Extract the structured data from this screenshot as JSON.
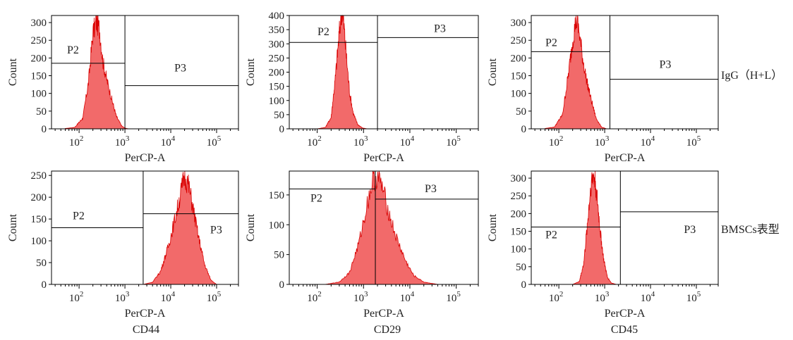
{
  "chart_data": [
    {
      "id": "igg-col1",
      "type": "area",
      "xlabel": "PerCP-A",
      "ylabel": "Count",
      "xscale": "log",
      "xticks": [
        {
          "v": 100,
          "t": "10",
          "e": "2"
        },
        {
          "v": 1000,
          "t": "10",
          "e": "3"
        },
        {
          "v": 10000,
          "t": "10",
          "e": "4"
        },
        {
          "v": 100000,
          "t": "10",
          "e": "5"
        }
      ],
      "xlim": [
        25,
        300000
      ],
      "ylim": [
        0,
        320
      ],
      "yticks": [
        0,
        50,
        100,
        150,
        200,
        250,
        300
      ],
      "histogram": {
        "x": [
          50,
          80,
          120,
          160,
          200,
          240,
          280,
          330,
          400,
          500,
          650,
          850,
          1000,
          1200
        ],
        "y": [
          1,
          4,
          30,
          130,
          270,
          305,
          280,
          190,
          140,
          90,
          35,
          8,
          2,
          0
        ]
      },
      "gates": [
        {
          "name": "P2",
          "x_range": [
            25,
            1000
          ],
          "y": 185
        },
        {
          "name": "P3",
          "x_range": [
            1000,
            300000
          ],
          "y": 122
        }
      ]
    },
    {
      "id": "igg-col2",
      "type": "area",
      "xlabel": "PerCP-A",
      "ylabel": "Count",
      "xscale": "log",
      "xticks": [
        {
          "v": 100,
          "t": "10",
          "e": "2"
        },
        {
          "v": 1000,
          "t": "10",
          "e": "3"
        },
        {
          "v": 10000,
          "t": "10",
          "e": "4"
        },
        {
          "v": 100000,
          "t": "10",
          "e": "5"
        }
      ],
      "xlim": [
        25,
        300000
      ],
      "ylim": [
        0,
        400
      ],
      "yticks": [
        0,
        50,
        100,
        150,
        200,
        250,
        300,
        350,
        400
      ],
      "histogram": {
        "x": [
          100,
          150,
          200,
          250,
          300,
          340,
          380,
          430,
          500,
          600,
          750,
          950,
          1200
        ],
        "y": [
          0,
          5,
          40,
          190,
          340,
          420,
          360,
          250,
          130,
          55,
          15,
          3,
          0
        ]
      },
      "gates": [
        {
          "name": "P2",
          "x_range": [
            25,
            2000
          ],
          "y": 305
        },
        {
          "name": "P3",
          "x_range": [
            2000,
            300000
          ],
          "y": 322
        }
      ]
    },
    {
      "id": "igg-col3",
      "type": "area",
      "xlabel": "PerCP-A",
      "ylabel": "Count",
      "xscale": "log",
      "xticks": [
        {
          "v": 100,
          "t": "10",
          "e": "2"
        },
        {
          "v": 1000,
          "t": "10",
          "e": "3"
        },
        {
          "v": 10000,
          "t": "10",
          "e": "4"
        },
        {
          "v": 100000,
          "t": "10",
          "e": "5"
        }
      ],
      "xlim": [
        25,
        300000
      ],
      "ylim": [
        0,
        320
      ],
      "yticks": [
        0,
        50,
        100,
        150,
        200,
        250,
        300
      ],
      "histogram": {
        "x": [
          50,
          80,
          120,
          160,
          200,
          240,
          280,
          330,
          400,
          500,
          650,
          850,
          1100
        ],
        "y": [
          1,
          5,
          40,
          150,
          250,
          310,
          270,
          200,
          140,
          85,
          30,
          5,
          0
        ]
      },
      "gates": [
        {
          "name": "P2",
          "x_range": [
            25,
            1300
          ],
          "y": 218
        },
        {
          "name": "P3",
          "x_range": [
            1300,
            300000
          ],
          "y": 140
        }
      ]
    },
    {
      "id": "cd44",
      "type": "area",
      "xlabel": "PerCP-A",
      "ylabel": "Count",
      "xscale": "log",
      "xticks": [
        {
          "v": 100,
          "t": "10",
          "e": "2"
        },
        {
          "v": 1000,
          "t": "10",
          "e": "3"
        },
        {
          "v": 10000,
          "t": "10",
          "e": "4"
        },
        {
          "v": 100000,
          "t": "10",
          "e": "5"
        }
      ],
      "xlim": [
        25,
        300000
      ],
      "ylim": [
        0,
        260
      ],
      "yticks": [
        0,
        50,
        100,
        150,
        200,
        250
      ],
      "histogram": {
        "x": [
          2500,
          4000,
          6000,
          9000,
          13000,
          17000,
          20000,
          24000,
          30000,
          40000,
          55000,
          75000,
          100000
        ],
        "y": [
          0,
          5,
          30,
          90,
          160,
          215,
          250,
          230,
          180,
          110,
          45,
          10,
          0
        ]
      },
      "gates": [
        {
          "name": "P2",
          "x_range": [
            25,
            2500
          ],
          "y": 130
        },
        {
          "name": "P3",
          "x_range": [
            2500,
            300000
          ],
          "y": 162
        }
      ]
    },
    {
      "id": "cd29",
      "type": "area",
      "xlabel": "PerCP-A",
      "ylabel": "Count",
      "xscale": "log",
      "xticks": [
        {
          "v": 100,
          "t": "10",
          "e": "2"
        },
        {
          "v": 1000,
          "t": "10",
          "e": "3"
        },
        {
          "v": 10000,
          "t": "10",
          "e": "4"
        },
        {
          "v": 100000,
          "t": "10",
          "e": "5"
        }
      ],
      "xlim": [
        25,
        300000
      ],
      "ylim": [
        0,
        190
      ],
      "yticks": [
        0,
        50,
        100,
        150
      ],
      "histogram": {
        "x": [
          150,
          300,
          500,
          800,
          1200,
          1600,
          2000,
          2600,
          3500,
          5000,
          8000,
          12000,
          20000,
          40000
        ],
        "y": [
          0,
          4,
          20,
          70,
          135,
          175,
          180,
          160,
          120,
          80,
          40,
          15,
          4,
          0
        ]
      },
      "gates": [
        {
          "name": "P2",
          "x_range": [
            25,
            1800
          ],
          "y": 160
        },
        {
          "name": "P3",
          "x_range": [
            1800,
            300000
          ],
          "y": 143
        }
      ]
    },
    {
      "id": "cd45",
      "type": "area",
      "xlabel": "PerCP-A",
      "ylabel": "Count",
      "xscale": "log",
      "xticks": [
        {
          "v": 100,
          "t": "10",
          "e": "2"
        },
        {
          "v": 1000,
          "t": "10",
          "e": "3"
        },
        {
          "v": 10000,
          "t": "10",
          "e": "4"
        },
        {
          "v": 100000,
          "t": "10",
          "e": "5"
        }
      ],
      "xlim": [
        25,
        300000
      ],
      "ylim": [
        0,
        320
      ],
      "yticks": [
        0,
        50,
        100,
        150,
        200,
        250,
        300
      ],
      "histogram": {
        "x": [
          200,
          280,
          350,
          420,
          500,
          560,
          620,
          700,
          800,
          950,
          1150,
          1400,
          1800
        ],
        "y": [
          0,
          8,
          60,
          170,
          280,
          310,
          290,
          230,
          150,
          70,
          20,
          4,
          0
        ]
      },
      "gates": [
        {
          "name": "P2",
          "x_range": [
            25,
            2200
          ],
          "y": 162
        },
        {
          "name": "P3",
          "x_range": [
            2200,
            300000
          ],
          "y": 205
        }
      ]
    }
  ],
  "row_labels": [
    "IgG（H+L）",
    "BMSCs表型"
  ],
  "column_labels": [
    "CD44",
    "CD29",
    "CD45"
  ],
  "colors": {
    "fill": "#f26a6a",
    "edge": "#d90000",
    "gate": "#000000"
  }
}
